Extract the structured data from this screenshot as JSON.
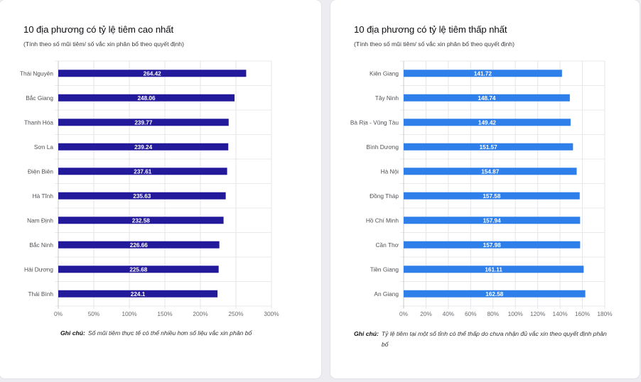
{
  "cards": [
    {
      "title": "10 địa phương có tỷ lệ tiêm cao nhất",
      "subtitle": "(Tính theo số mũi tiêm/ số vắc xin phân bổ theo quyết định)",
      "note_label": "Ghi chú:",
      "note_text": "Số mũi tiêm thực tế có thể nhiều hơn số liệu vắc xin phân bổ"
    },
    {
      "title": "10 địa phương có tỷ lệ tiêm thấp nhất",
      "subtitle": "(Tính theo số mũi tiêm/ số vắc xin phân bổ theo quyết định)",
      "note_label": "Ghi chú:",
      "note_text": "Tỷ lệ tiêm tại một số tỉnh có thể thấp do chưa nhận đủ vắc xin theo quyết định phân bổ"
    }
  ],
  "chart_data": [
    {
      "type": "bar",
      "orientation": "horizontal",
      "title": "10 địa phương có tỷ lệ tiêm cao nhất",
      "xlabel": "",
      "ylabel": "",
      "categories": [
        "Thái Nguyên",
        "Bắc Giang",
        "Thanh Hóa",
        "Sơn La",
        "Điện Biên",
        "Hà Tĩnh",
        "Nam Định",
        "Bắc Ninh",
        "Hải Dương",
        "Thái Bình"
      ],
      "values": [
        264.42,
        248.06,
        239.77,
        239.24,
        237.61,
        235.63,
        232.58,
        226.66,
        225.68,
        224.1
      ],
      "value_labels": [
        "264.42",
        "248.06",
        "239.77",
        "239.24",
        "237.61",
        "235.63",
        "232.58",
        "226.66",
        "225.68",
        "224.1"
      ],
      "unit": "%",
      "xlim": [
        0,
        300
      ],
      "xticks": [
        0,
        50,
        100,
        150,
        200,
        250,
        300
      ],
      "xtick_labels": [
        "0%",
        "50%",
        "100%",
        "150%",
        "200%",
        "250%",
        "300%"
      ],
      "grid": true,
      "legend": "none",
      "bar_color": "#23199b"
    },
    {
      "type": "bar",
      "orientation": "horizontal",
      "title": "10 địa phương có tỷ lệ tiêm thấp nhất",
      "xlabel": "",
      "ylabel": "",
      "categories": [
        "Kiên Giang",
        "Tây Ninh",
        "Bà Rịa - Vũng Tàu",
        "Bình Dương",
        "Hà Nội",
        "Đồng Tháp",
        "Hồ Chí Minh",
        "Cần Thơ",
        "Tiền Giang",
        "An Giang"
      ],
      "values": [
        141.72,
        148.74,
        149.42,
        151.57,
        154.87,
        157.58,
        157.94,
        157.98,
        161.11,
        162.58
      ],
      "value_labels": [
        "141.72",
        "148.74",
        "149.42",
        "151.57",
        "154.87",
        "157.58",
        "157.94",
        "157.98",
        "161.11",
        "162.58"
      ],
      "unit": "%",
      "xlim": [
        0,
        180
      ],
      "xticks": [
        0,
        20,
        40,
        60,
        80,
        100,
        120,
        140,
        160,
        180
      ],
      "xtick_labels": [
        "0%",
        "20%",
        "40%",
        "60%",
        "80%",
        "100%",
        "120%",
        "140%",
        "160%",
        "180%"
      ],
      "grid": true,
      "legend": "none",
      "bar_color": "#2f7fea"
    }
  ]
}
